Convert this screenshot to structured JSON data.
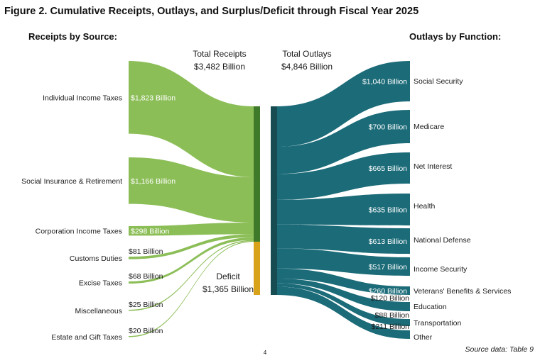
{
  "title": "Figure 2. Cumulative Receipts, Outlays, and Surplus/Deficit through Fiscal Year 2025",
  "receipts_heading": "Receipts by Source:",
  "outlays_heading": "Outlays by Function:",
  "total_receipts_label": "Total Receipts",
  "total_receipts_value": "$3,482 Billion",
  "total_outlays_label": "Total Outlays",
  "total_outlays_value": "$4,846 Billion",
  "deficit_label": "Deficit",
  "deficit_value": "$1,365 Billion",
  "source_note": "Source data: Table 9",
  "page_number": "4",
  "colors": {
    "receipts": "#8cbe58",
    "receipts_bar": "#3f7a2a",
    "outlays": "#1b6b78",
    "outlays_bar": "#174c53",
    "deficit": "#d9a21b"
  },
  "chart_data": {
    "type": "sankey",
    "units": "billions of dollars",
    "receipts": [
      {
        "label": "Individual Income Taxes",
        "value": 1823,
        "value_label": "$1,823 Billion"
      },
      {
        "label": "Social Insurance & Retirement",
        "value": 1166,
        "value_label": "$1,166 Billion"
      },
      {
        "label": "Corporation Income Taxes",
        "value": 298,
        "value_label": "$298 Billion"
      },
      {
        "label": "Customs Duties",
        "value": 81,
        "value_label": "$81 Billion"
      },
      {
        "label": "Excise Taxes",
        "value": 68,
        "value_label": "$68 Billion"
      },
      {
        "label": "Miscellaneous",
        "value": 25,
        "value_label": "$25 Billion"
      },
      {
        "label": "Estate and Gift Taxes",
        "value": 20,
        "value_label": "$20 Billion"
      }
    ],
    "deficit": {
      "label": "Deficit",
      "value": 1365
    },
    "outlays": [
      {
        "label": "Social Security",
        "value": 1040,
        "value_label": "$1,040 Billion"
      },
      {
        "label": "Medicare",
        "value": 700,
        "value_label": "$700 Billion"
      },
      {
        "label": "Net Interest",
        "value": 665,
        "value_label": "$665 Billion"
      },
      {
        "label": "Health",
        "value": 635,
        "value_label": "$635 Billion"
      },
      {
        "label": "National Defense",
        "value": 613,
        "value_label": "$613 Billion"
      },
      {
        "label": "Income Security",
        "value": 517,
        "value_label": "$517 Billion"
      },
      {
        "label": "Veterans' Benefits & Services",
        "value": 260,
        "value_label": "$260 Billion"
      },
      {
        "label": "Education",
        "value": 120,
        "value_label": "$120 Billion"
      },
      {
        "label": "Transportation",
        "value": 88,
        "value_label": "$88 Billion"
      },
      {
        "label": "Other",
        "value": 211,
        "value_label": "$211 Billion"
      }
    ]
  }
}
